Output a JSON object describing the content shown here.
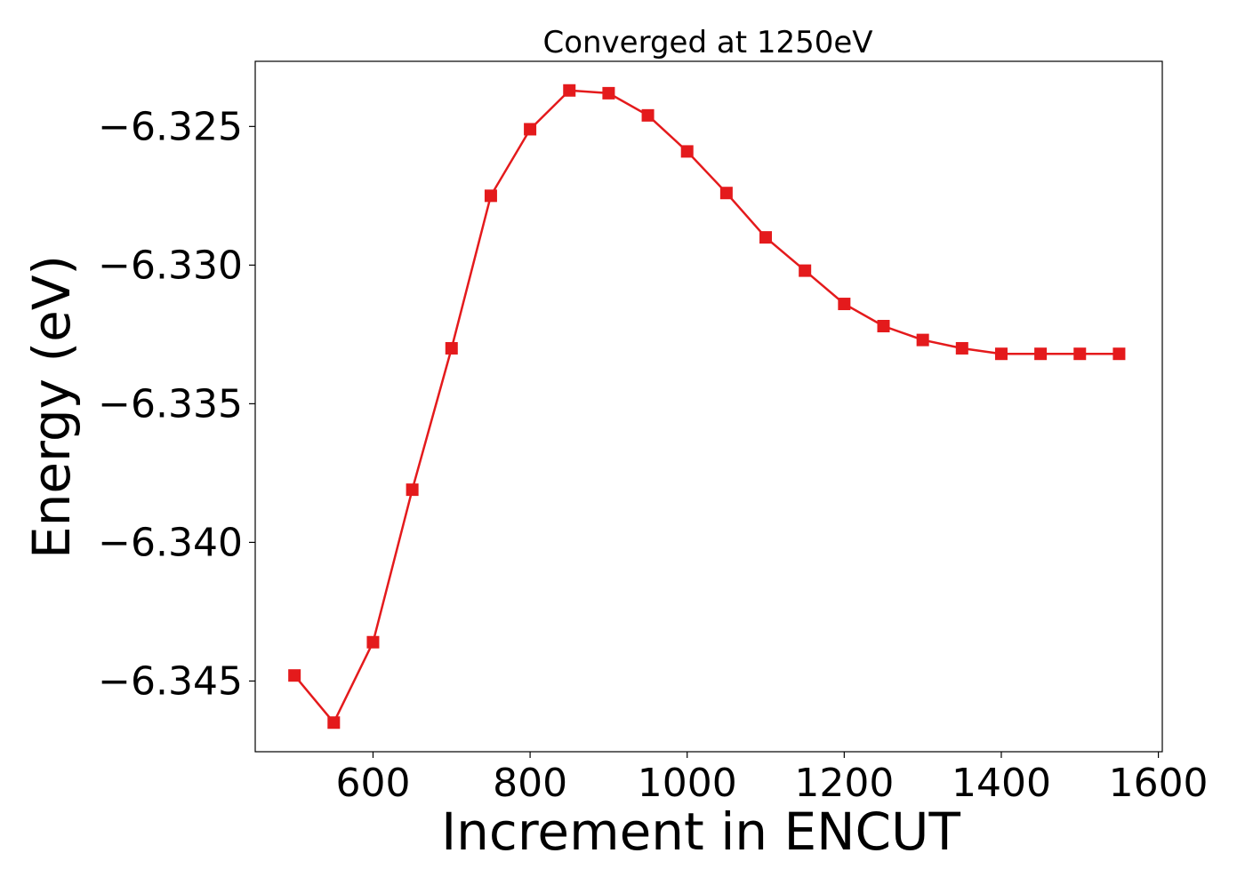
{
  "chart_data": {
    "type": "line",
    "title": "Converged at 1250eV",
    "xlabel": "Increment in ENCUT",
    "ylabel": "Energy (eV)",
    "xlim": [
      450,
      1605
    ],
    "ylim": [
      -6.34755,
      -6.32265
    ],
    "x_ticks": [
      600,
      800,
      1000,
      1200,
      1400,
      1600
    ],
    "y_ticks": [
      -6.345,
      -6.34,
      -6.335,
      -6.33,
      -6.325
    ],
    "y_tick_labels": [
      "−6.345",
      "−6.340",
      "−6.335",
      "−6.330",
      "−6.325"
    ],
    "grid": false,
    "legend": "none",
    "marker": "square",
    "color": "#e41a1c",
    "series": [
      {
        "x": [
          500,
          550,
          600,
          650,
          700,
          750,
          800,
          850,
          900,
          950,
          1000,
          1050,
          1100,
          1150,
          1200,
          1250,
          1300,
          1350,
          1400,
          1450,
          1500,
          1550
        ],
        "y": [
          -6.3448,
          -6.3465,
          -6.3436,
          -6.3381,
          -6.333,
          -6.3275,
          -6.3251,
          -6.3237,
          -6.3238,
          -6.3246,
          -6.3259,
          -6.3274,
          -6.329,
          -6.3302,
          -6.3314,
          -6.3322,
          -6.3327,
          -6.333,
          -6.3332,
          -6.3332,
          -6.3332,
          -6.3332
        ]
      }
    ]
  }
}
